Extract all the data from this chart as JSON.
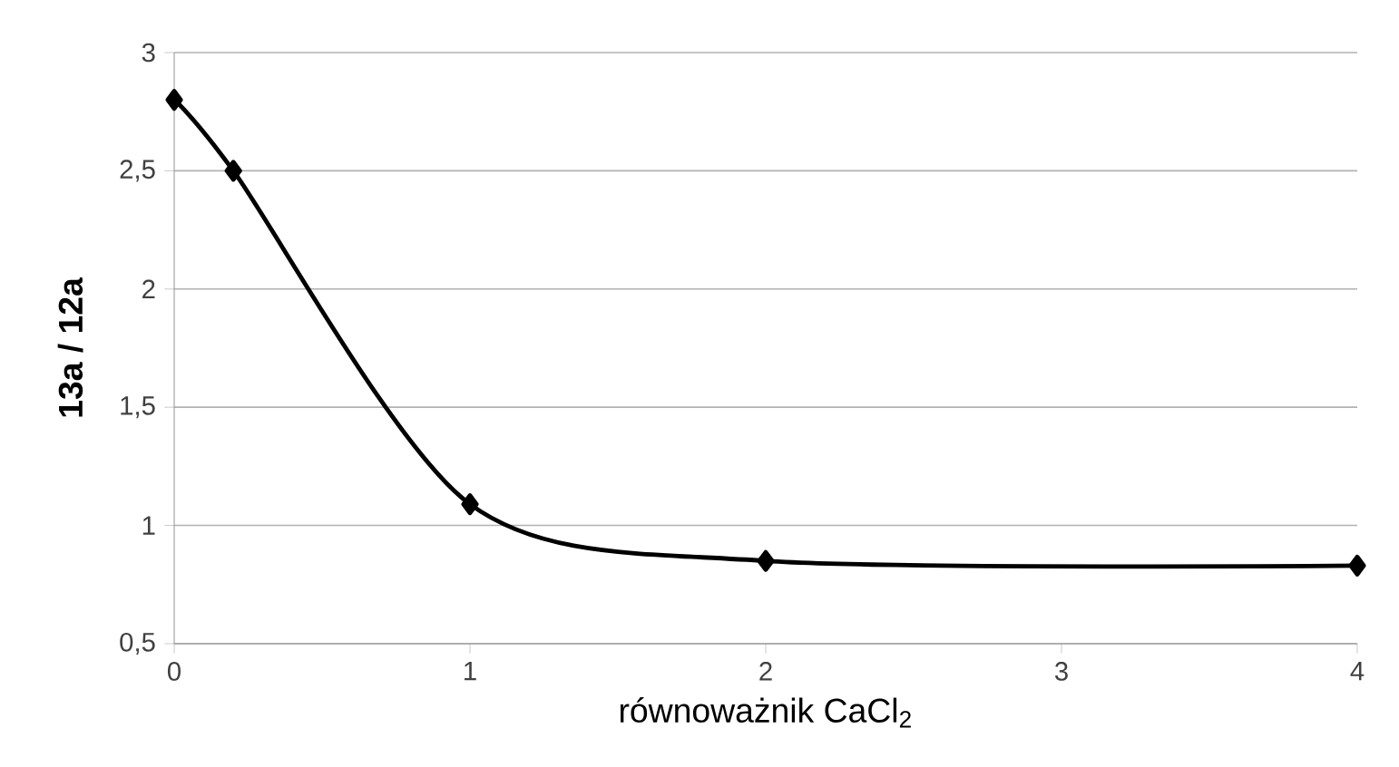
{
  "chart_data": {
    "type": "line",
    "xlabel": "równoważnik CaCl$_{2}$",
    "ylabel": "13a / 12a",
    "x": [
      0,
      0.2,
      1,
      2,
      4
    ],
    "series": [
      {
        "color": "#000000",
        "values": [
          2.8,
          2.5,
          1.09,
          0.85,
          0.83
        ]
      }
    ],
    "xlim": [
      0,
      4
    ],
    "xticks": [
      0,
      1,
      2,
      3,
      4
    ],
    "ylim": [
      0.5,
      3
    ],
    "yticks": [
      {
        "value": 0.5,
        "label": "0,5"
      },
      1,
      {
        "value": 1.5,
        "label": "1,5"
      },
      2,
      {
        "value": 2.5,
        "label": "2,5"
      },
      3
    ],
    "grid": "y",
    "marker": "diamond",
    "line_style": "solid"
  }
}
